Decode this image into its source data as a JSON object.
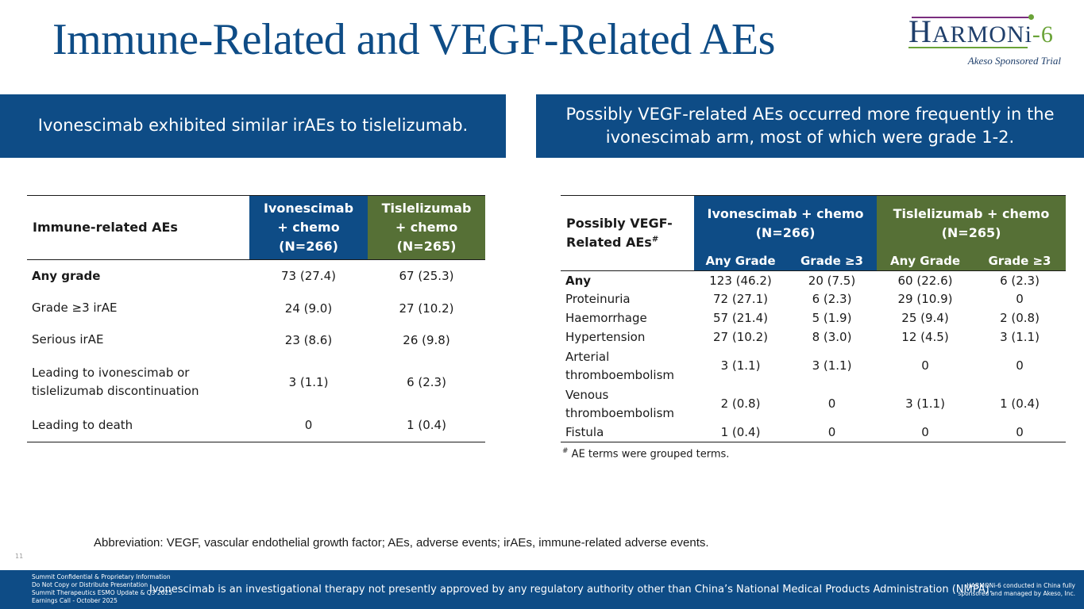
{
  "title": "Immune-Related and VEGF-Related AEs",
  "logo": {
    "word_h": "H",
    "word_armon": "ARMON",
    "word_i": "i",
    "word_suffix": "-6",
    "tagline": "Akeso Sponsored Trial"
  },
  "banners": {
    "left": "Ivonescimab exhibited similar irAEs to tislelizumab.",
    "right": "Possibly VEGF-related AEs occurred more frequently in the ivonescimab arm, most of which were grade 1-2."
  },
  "immune_table": {
    "header": {
      "row_label": "Immune-related AEs",
      "ivo_line1": "Ivonescimab",
      "ivo_line2": "+ chemo",
      "ivo_line3": "(N=266)",
      "tis_line1": "Tislelizumab",
      "tis_line2": "+ chemo",
      "tis_line3": "(N=265)"
    },
    "rows": [
      {
        "label": "Any grade",
        "ivo": "73 (27.4)",
        "tis": "67 (25.3)"
      },
      {
        "label": "Grade ≥3 irAE",
        "ivo": "24 (9.0)",
        "tis": "27 (10.2)"
      },
      {
        "label": "Serious irAE",
        "ivo": "23 (8.6)",
        "tis": "26 (9.8)"
      },
      {
        "label_line1": "Leading to ivonescimab or",
        "label_line2": "tislelizumab discontinuation",
        "ivo": "3 (1.1)",
        "tis": "6 (2.3)"
      },
      {
        "label": "Leading to death",
        "ivo": "0",
        "tis": "1 (0.4)"
      }
    ]
  },
  "vegf_table": {
    "header": {
      "row_label_line1": "Possibly VEGF-",
      "row_label_line2": "Related AEs",
      "row_label_sup": "#",
      "ivo_line1": "Ivonescimab + chemo",
      "ivo_line2": "(N=266)",
      "tis_line1": "Tislelizumab + chemo",
      "tis_line2": "(N=265)",
      "sub_any": "Any Grade",
      "sub_g3": "Grade ≥3"
    },
    "rows": [
      {
        "label": "Any",
        "ivo_any": "123 (46.2)",
        "ivo_g3": "20 (7.5)",
        "tis_any": "60 (22.6)",
        "tis_g3": "6 (2.3)"
      },
      {
        "label": "Proteinuria",
        "ivo_any": "72 (27.1)",
        "ivo_g3": "6 (2.3)",
        "tis_any": "29 (10.9)",
        "tis_g3": "0"
      },
      {
        "label": "Haemorrhage",
        "ivo_any": "57 (21.4)",
        "ivo_g3": "5 (1.9)",
        "tis_any": "25 (9.4)",
        "tis_g3": "2 (0.8)"
      },
      {
        "label": "Hypertension",
        "ivo_any": "27 (10.2)",
        "ivo_g3": "8 (3.0)",
        "tis_any": "12 (4.5)",
        "tis_g3": "3 (1.1)"
      },
      {
        "label_line1": "Arterial",
        "label_line2": "thromboembolism",
        "ivo_any": "3 (1.1)",
        "ivo_g3": "3 (1.1)",
        "tis_any": "0",
        "tis_g3": "0"
      },
      {
        "label_line1": "Venous",
        "label_line2": "thromboembolism",
        "ivo_any": "2 (0.8)",
        "ivo_g3": "0",
        "tis_any": "3 (1.1)",
        "tis_g3": "1 (0.4)"
      },
      {
        "label": "Fistula",
        "ivo_any": "1 (0.4)",
        "ivo_g3": "0",
        "tis_any": "0",
        "tis_g3": "0"
      }
    ]
  },
  "footnote": {
    "sup": "#",
    "text": " AE terms were grouped terms."
  },
  "abbreviation": "Abbreviation: VEGF, vascular endothelial growth factor; AEs, adverse events;  irAEs, immune-related adverse events.",
  "page_number": "11",
  "footer": {
    "left_lines": [
      "Summit Confidential & Proprietary Information",
      "Do Not Copy or Distribute Presentation",
      "Summit Therapeutics ESMO Update & Q3 2025",
      "Earnings Call - October 2025"
    ],
    "center": "Ivonescimab is an investigational therapy not presently approved by any regulatory authority other than China’s National Medical Products Administration (NMPA).",
    "right_lines": [
      "HARMONi-6 conducted in China fully",
      "sponsored and managed by Akeso, Inc."
    ]
  }
}
